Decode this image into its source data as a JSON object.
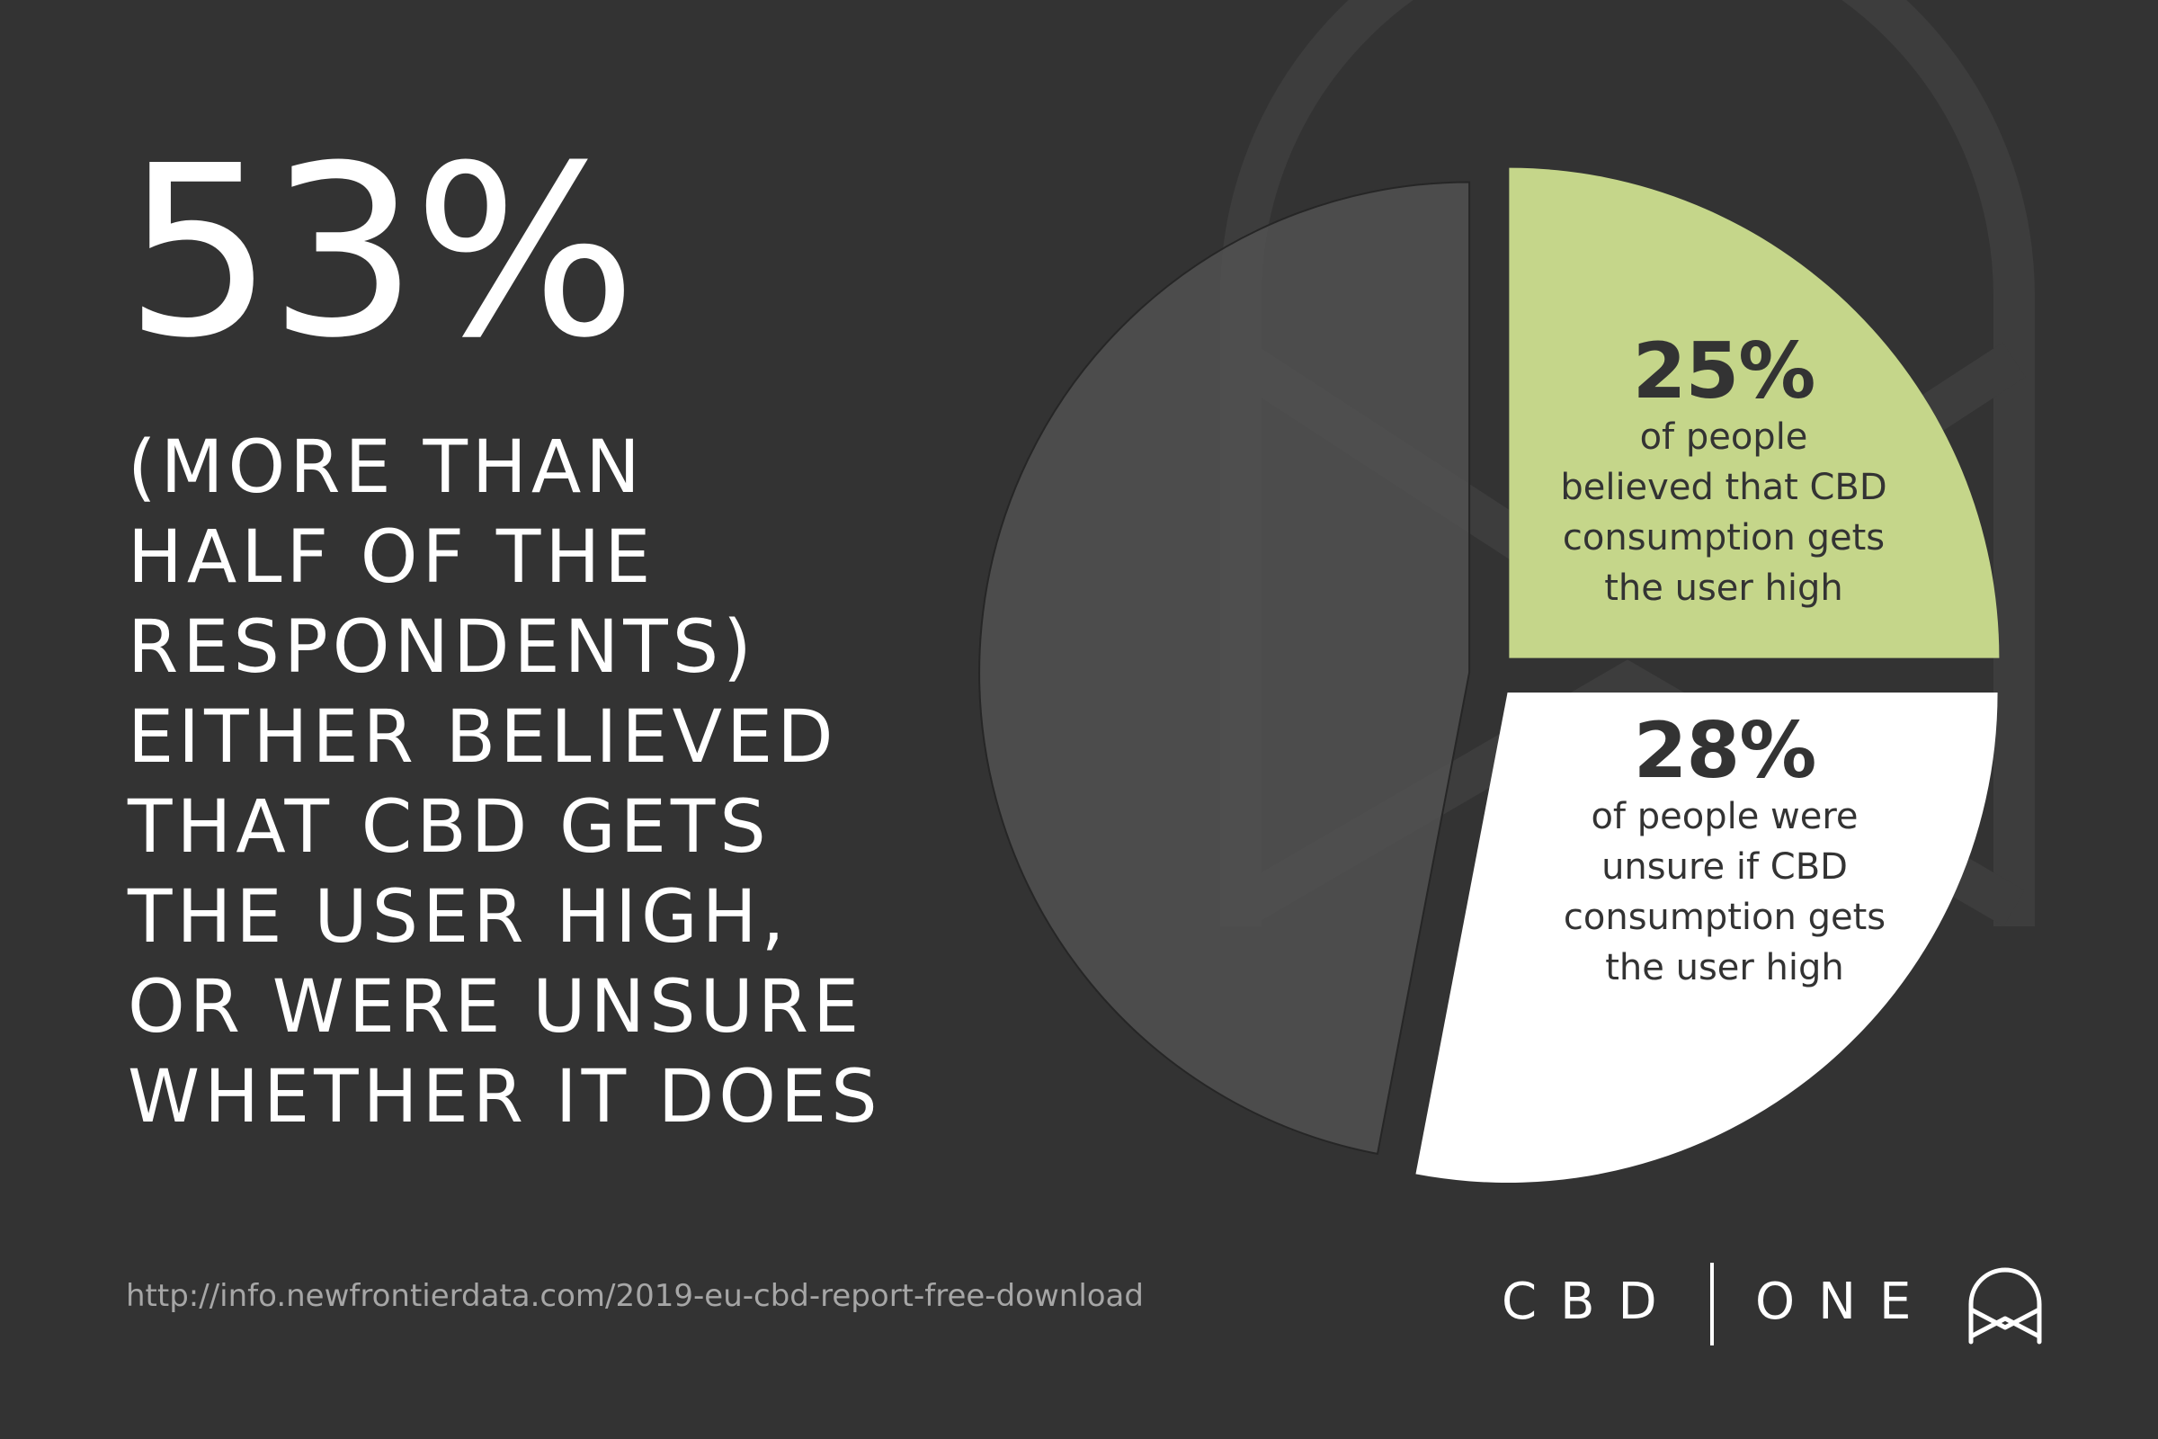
{
  "headline": {
    "big_stat": "53%",
    "lines": [
      "(MORE THAN",
      "HALF OF THE",
      "RESPONDENTS)",
      "EITHER BELIEVED",
      "THAT CBD GETS",
      "THE USER HIGH,",
      "OR WERE UNSURE",
      "WHETHER IT DOES"
    ]
  },
  "chart_data": {
    "type": "pie",
    "slices": [
      {
        "value": 25,
        "label": "25%",
        "description": [
          "of people",
          "believed that CBD",
          "consumption gets",
          "the user high"
        ],
        "color": "#c5d68a"
      },
      {
        "value": 28,
        "label": "28%",
        "description": [
          "of people were",
          "unsure if CBD",
          "consumption gets",
          "the user high"
        ],
        "color": "#ffffff"
      },
      {
        "value": 47,
        "label": "",
        "description": [],
        "color": "#515151"
      }
    ]
  },
  "source": {
    "url": "http://info.newfrontierdata.com/2019-eu-cbd-report-free-download"
  },
  "brand": {
    "left": "CBD",
    "right": "ONE",
    "logo_icon": "cbd-one-logo-icon"
  },
  "colors": {
    "background": "#333333",
    "accent_green": "#c5d68a",
    "text_dark": "#333333",
    "source_gray": "#a6a6a6"
  }
}
